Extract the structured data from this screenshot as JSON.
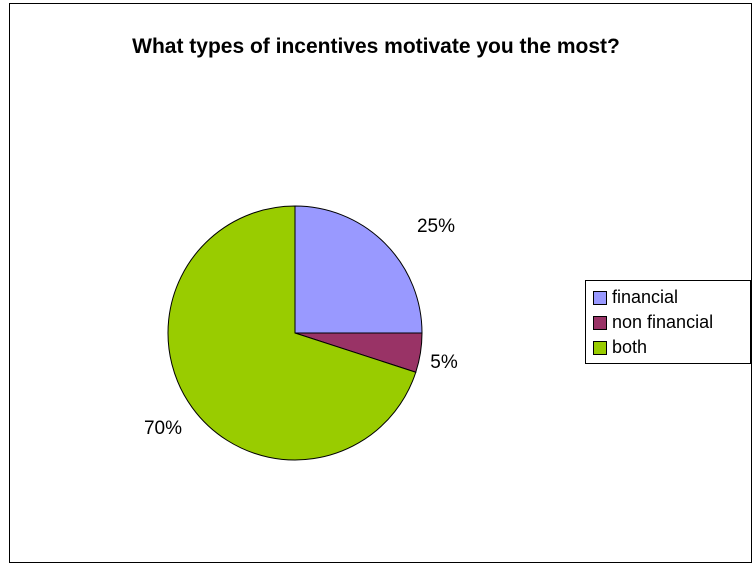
{
  "chart_data": {
    "type": "pie",
    "title": "What types of incentives motivate you the most?",
    "categories": [
      "financial",
      "non financial",
      "both"
    ],
    "values": [
      25,
      5,
      70
    ],
    "labels": [
      "25%",
      "5%",
      "70%"
    ],
    "colors": [
      "#9999ff",
      "#993366",
      "#99cc00"
    ],
    "legend_position": "right"
  }
}
